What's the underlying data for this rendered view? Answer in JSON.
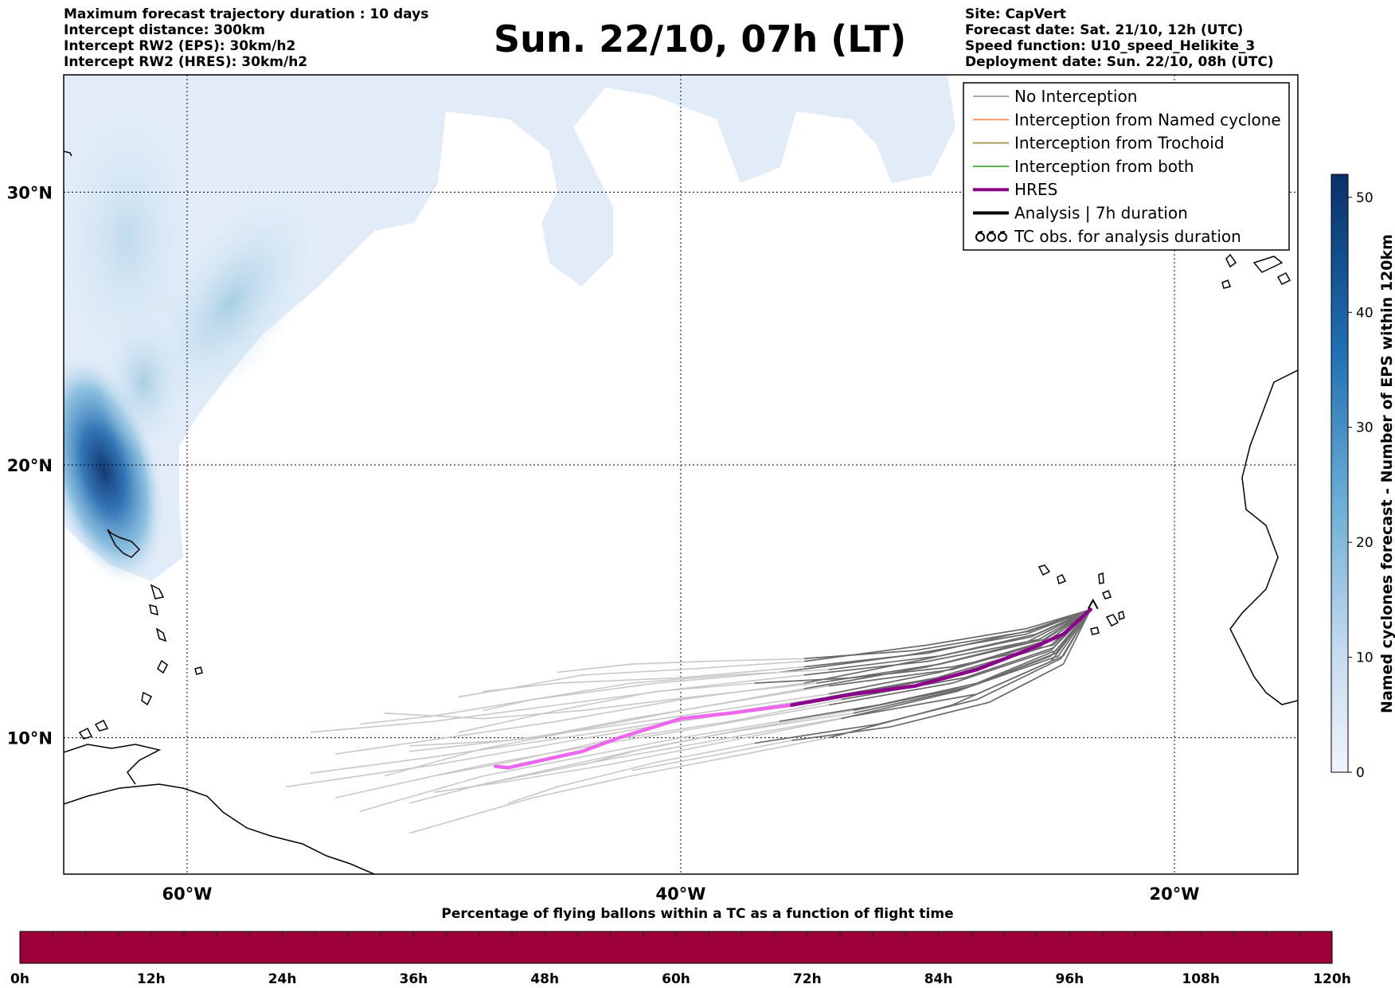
{
  "header_left": [
    "Maximum forecast trajectory duration : 10 days",
    "Intercept distance: 300km",
    "Intercept RW2 (EPS):  30km/h2",
    "Intercept RW2 (HRES): 30km/h2"
  ],
  "header_right": [
    "Site: CapVert",
    "Forecast date: Sat. 21/10, 12h (UTC)",
    "Speed function: U10_speed_Helikite_3",
    "Deployment date: Sun. 22/10, 08h (UTC)"
  ],
  "title": "Sun. 22/10, 07h (LT)",
  "map": {
    "lon_range": [
      -65,
      -15
    ],
    "lat_range": [
      5,
      34.3
    ],
    "lon_ticks": [
      {
        "value": -60,
        "label": "60°W"
      },
      {
        "value": -40,
        "label": "40°W"
      },
      {
        "value": -20,
        "label": "20°W"
      }
    ],
    "lat_ticks": [
      {
        "value": 30,
        "label": "30°N"
      },
      {
        "value": 20,
        "label": "20°N"
      },
      {
        "value": 10,
        "label": "10°N"
      }
    ],
    "grid": "dotted",
    "site": {
      "name": "CapVert",
      "lon": -23.3,
      "lat": 14.9
    }
  },
  "legend": {
    "position": "top-right",
    "items": [
      {
        "label": "No Interception",
        "color": "#888888",
        "style": "line"
      },
      {
        "label": "Interception from Named cyclone",
        "color": "#ff7f50",
        "style": "line"
      },
      {
        "label": "Interception from Trochoid",
        "color": "#9a8c3c",
        "style": "line"
      },
      {
        "label": "Interception from both",
        "color": "#2ca02c",
        "style": "line"
      },
      {
        "label": "HRES",
        "color": "#8b008b",
        "style": "thick"
      },
      {
        "label": "Analysis | 7h duration",
        "color": "#000000",
        "style": "thick"
      },
      {
        "label": "TC obs. for analysis duration",
        "color": "#000000",
        "style": "tc-symbol"
      }
    ]
  },
  "colorbar": {
    "label": "Named cyclones forecast - Number of EPS within 120km",
    "min": 0,
    "max": 52,
    "ticks": [
      0,
      10,
      20,
      30,
      40,
      50
    ],
    "color_low": "#f0f5fc",
    "color_high": "#08306b"
  },
  "timebar": {
    "title": "Percentage of flying ballons within a TC as a function of flight time",
    "ticks": [
      "0h",
      "12h",
      "24h",
      "36h",
      "48h",
      "60h",
      "72h",
      "84h",
      "96h",
      "108h",
      "120h"
    ],
    "fill_color": "#9e003a",
    "value_percent": 0
  },
  "hres_track": [
    [
      -23.4,
      14.7
    ],
    [
      -24.5,
      13.8
    ],
    [
      -26.0,
      13.2
    ],
    [
      -28.0,
      12.5
    ],
    [
      -30.5,
      11.9
    ],
    [
      -33.0,
      11.6
    ],
    [
      -35.5,
      11.2
    ],
    [
      -38.0,
      10.9
    ],
    [
      -40.0,
      10.7
    ],
    [
      -42.5,
      10.0
    ],
    [
      -44.0,
      9.5
    ],
    [
      -45.5,
      9.2
    ],
    [
      -47.0,
      8.9
    ],
    [
      -47.5,
      8.95
    ]
  ],
  "hres_split_lon": -36,
  "trajectories": [
    [
      [
        -23.4,
        14.7
      ],
      [
        -26,
        13.5
      ],
      [
        -30,
        12.6
      ],
      [
        -35,
        11.8
      ],
      [
        -40,
        11.0
      ],
      [
        -44,
        10.3
      ],
      [
        -48,
        9.6
      ],
      [
        -52,
        8.6
      ]
    ],
    [
      [
        -23.4,
        14.7
      ],
      [
        -25,
        13.2
      ],
      [
        -29,
        12.0
      ],
      [
        -34,
        11.2
      ],
      [
        -39,
        10.4
      ],
      [
        -43,
        9.8
      ],
      [
        -48,
        9.0
      ],
      [
        -54,
        7.8
      ]
    ],
    [
      [
        -23.4,
        14.7
      ],
      [
        -25.5,
        13.6
      ],
      [
        -30,
        12.8
      ],
      [
        -35,
        12.3
      ],
      [
        -40,
        11.8
      ],
      [
        -45,
        11.2
      ],
      [
        -50,
        10.6
      ],
      [
        -55,
        10.2
      ]
    ],
    [
      [
        -23.4,
        14.7
      ],
      [
        -24.5,
        13.0
      ],
      [
        -28,
        11.6
      ],
      [
        -33,
        10.8
      ],
      [
        -38,
        10.0
      ],
      [
        -43,
        9.2
      ],
      [
        -48,
        8.3
      ],
      [
        -51,
        7.6
      ]
    ],
    [
      [
        -23.4,
        14.7
      ],
      [
        -26,
        14.0
      ],
      [
        -30,
        13.4
      ],
      [
        -35,
        12.8
      ],
      [
        -40,
        12.5
      ],
      [
        -44,
        12.3
      ],
      [
        -47,
        11.8
      ],
      [
        -49,
        11.5
      ]
    ],
    [
      [
        -23.4,
        14.7
      ],
      [
        -25,
        12.8
      ],
      [
        -29,
        11.2
      ],
      [
        -34,
        10.0
      ],
      [
        -38,
        9.3
      ],
      [
        -42,
        8.6
      ],
      [
        -46,
        7.8
      ],
      [
        -51,
        6.5
      ]
    ],
    [
      [
        -23.4,
        14.7
      ],
      [
        -26,
        13.8
      ],
      [
        -31,
        13.0
      ],
      [
        -36,
        12.4
      ],
      [
        -41,
        12.0
      ],
      [
        -46,
        11.4
      ],
      [
        -50,
        10.8
      ],
      [
        -53,
        10.5
      ]
    ],
    [
      [
        -23.4,
        14.7
      ],
      [
        -25,
        13.4
      ],
      [
        -29,
        12.3
      ],
      [
        -34,
        11.5
      ],
      [
        -39,
        10.8
      ],
      [
        -44,
        10.1
      ],
      [
        -50,
        9.3
      ],
      [
        -55,
        8.7
      ]
    ],
    [
      [
        -23.4,
        14.7
      ],
      [
        -24.8,
        13.1
      ],
      [
        -28.5,
        11.8
      ],
      [
        -33,
        10.9
      ],
      [
        -38,
        10.2
      ],
      [
        -42,
        9.5
      ],
      [
        -46,
        8.7
      ],
      [
        -49,
        8.1
      ]
    ],
    [
      [
        -23.4,
        14.7
      ],
      [
        -26,
        13.9
      ],
      [
        -30,
        13.1
      ],
      [
        -35,
        12.6
      ],
      [
        -40,
        12.2
      ],
      [
        -45,
        12.0
      ],
      [
        -48,
        11.7
      ]
    ],
    [
      [
        -23.4,
        14.7
      ],
      [
        -25.5,
        13.3
      ],
      [
        -30,
        12.1
      ],
      [
        -35,
        11.3
      ],
      [
        -40,
        10.6
      ],
      [
        -45,
        9.8
      ],
      [
        -50,
        9.0
      ],
      [
        -56,
        8.2
      ]
    ],
    [
      [
        -23.4,
        14.7
      ],
      [
        -24.6,
        12.9
      ],
      [
        -28,
        11.4
      ],
      [
        -32,
        10.5
      ],
      [
        -37,
        9.8
      ],
      [
        -41,
        9.1
      ],
      [
        -45,
        8.2
      ],
      [
        -47,
        7.6
      ]
    ],
    [
      [
        -23.4,
        14.7
      ],
      [
        -25.8,
        13.7
      ],
      [
        -30,
        12.9
      ],
      [
        -35,
        12.0
      ],
      [
        -40,
        11.4
      ],
      [
        -45,
        10.6
      ],
      [
        -51,
        9.8
      ],
      [
        -54,
        9.4
      ]
    ],
    [
      [
        -23.4,
        14.7
      ],
      [
        -25.2,
        13.5
      ],
      [
        -29,
        12.5
      ],
      [
        -34,
        11.9
      ],
      [
        -38,
        11.3
      ],
      [
        -42,
        10.7
      ],
      [
        -46,
        10.0
      ],
      [
        -51,
        9.5
      ]
    ],
    [
      [
        -23.4,
        14.7
      ],
      [
        -24.9,
        13.3
      ],
      [
        -28.5,
        12.2
      ],
      [
        -33.5,
        11.4
      ],
      [
        -38,
        10.6
      ],
      [
        -43,
        9.9
      ],
      [
        -47,
        9.1
      ],
      [
        -50,
        8.6
      ]
    ],
    [
      [
        -23.4,
        14.7
      ],
      [
        -25.6,
        13.8
      ],
      [
        -29.5,
        13.0
      ],
      [
        -34,
        12.5
      ],
      [
        -38,
        12.3
      ],
      [
        -42,
        12.0
      ],
      [
        -46,
        11.4
      ],
      [
        -48,
        11.0
      ]
    ],
    [
      [
        -23.4,
        14.7
      ],
      [
        -24.7,
        13.0
      ],
      [
        -28.2,
        11.9
      ],
      [
        -33,
        11.0
      ],
      [
        -37.5,
        10.3
      ],
      [
        -41.5,
        9.6
      ],
      [
        -44,
        9.0
      ]
    ],
    [
      [
        -23.4,
        14.7
      ],
      [
        -25.3,
        13.6
      ],
      [
        -29.5,
        12.7
      ],
      [
        -34.5,
        12.0
      ],
      [
        -39.5,
        11.5
      ],
      [
        -44,
        11.0
      ],
      [
        -48,
        10.7
      ],
      [
        -52,
        10.9
      ]
    ],
    [
      [
        -23.4,
        14.7
      ],
      [
        -24.8,
        13.2
      ],
      [
        -28,
        12.0
      ],
      [
        -32,
        11.2
      ],
      [
        -36,
        10.6
      ],
      [
        -40,
        10.0
      ],
      [
        -44,
        9.3
      ],
      [
        -48,
        8.6
      ],
      [
        -53,
        7.3
      ]
    ],
    [
      [
        -23.4,
        14.7
      ],
      [
        -25.9,
        13.9
      ],
      [
        -30.5,
        13.2
      ],
      [
        -35,
        12.9
      ],
      [
        -39,
        12.8
      ],
      [
        -42,
        12.7
      ],
      [
        -45,
        12.4
      ]
    ],
    [
      [
        -23.4,
        14.7
      ],
      [
        -24.5,
        12.7
      ],
      [
        -27.5,
        11.3
      ],
      [
        -31.5,
        10.4
      ],
      [
        -35.5,
        9.9
      ],
      [
        -39,
        9.3
      ],
      [
        -42,
        8.8
      ]
    ],
    [
      [
        -23.4,
        14.7
      ],
      [
        -25.4,
        13.5
      ],
      [
        -29.5,
        12.4
      ],
      [
        -34,
        11.6
      ],
      [
        -38.5,
        11.0
      ],
      [
        -43,
        10.4
      ],
      [
        -47,
        9.9
      ],
      [
        -51,
        9.7
      ]
    ],
    [
      [
        -23.4,
        14.7
      ],
      [
        -24.9,
        13.4
      ],
      [
        -29,
        12.6
      ],
      [
        -33,
        12.2
      ],
      [
        -37,
        12.0
      ],
      [
        -41,
        11.7
      ],
      [
        -45,
        11.0
      ],
      [
        -49,
        10.2
      ]
    ],
    [
      [
        -23.4,
        14.7
      ],
      [
        -25,
        13.0
      ],
      [
        -28.8,
        11.7
      ],
      [
        -33.5,
        10.7
      ],
      [
        -38.5,
        9.8
      ],
      [
        -43,
        9.0
      ],
      [
        -47,
        8.4
      ],
      [
        -50,
        8.0
      ]
    ]
  ]
}
